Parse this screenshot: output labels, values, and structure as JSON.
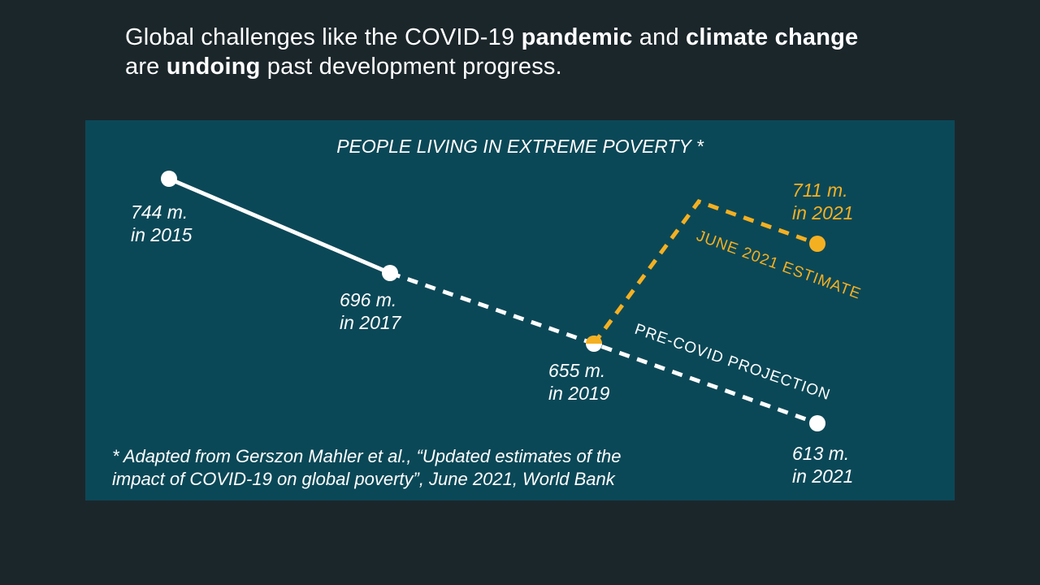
{
  "headline": {
    "t1": "Global challenges like the COVID-19 ",
    "b1": "pandemic",
    "t2": " and ",
    "b2": "climate change",
    "t3": "are ",
    "b3": "undoing",
    "t4": " past development progress."
  },
  "colors": {
    "background": "#1b262b",
    "panel": "#0b4857",
    "white": "#ffffff",
    "orange": "#f5b021"
  },
  "chart_data": {
    "type": "line",
    "title": "PEOPLE LIVING IN EXTREME POVERTY *",
    "unit": "million people",
    "series": [
      {
        "style": "solid",
        "color": "#ffffff",
        "points": [
          {
            "x": 2015,
            "y": 744,
            "label": [
              "744 m.",
              "in 2015"
            ]
          },
          {
            "x": 2017,
            "y": 696,
            "label": [
              "696 m.",
              "in 2017"
            ]
          }
        ]
      },
      {
        "style": "dashed",
        "color": "#ffffff",
        "points": [
          {
            "x": 2017,
            "y": 696
          },
          {
            "x": 2019,
            "y": 655,
            "label": [
              "655 m.",
              "in 2019"
            ]
          },
          {
            "x": 2021,
            "y": 613,
            "label": [
              "613 m.",
              "in 2021"
            ]
          }
        ],
        "annotation": "PRE-COVID PROJECTION"
      },
      {
        "style": "dashed",
        "color": "#f5b021",
        "points": [
          {
            "x": 2019,
            "y": 655
          },
          {
            "x": 2021,
            "y": 711,
            "label": [
              "711 m.",
              "in 2021"
            ]
          }
        ],
        "annotation": "JUNE 2021 ESTIMATE"
      }
    ],
    "source": [
      "* Adapted from Gerszon Mahler et al., “Updated estimates of the",
      "impact of COVID-19 on global poverty”, June 2021, World Bank"
    ]
  }
}
